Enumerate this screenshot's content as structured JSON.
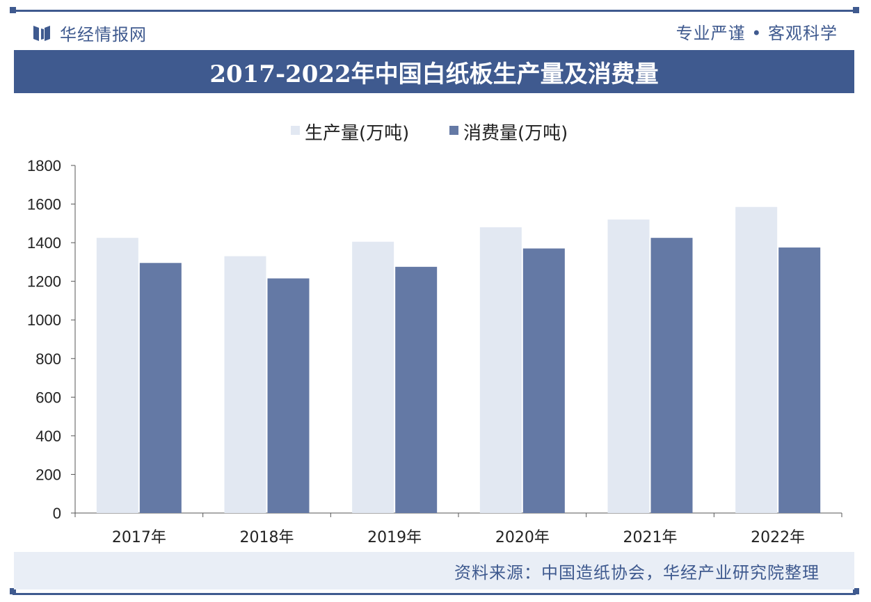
{
  "header": {
    "logo_text": "华经情报网",
    "slogan": "专业严谨 • 客观科学",
    "title": "2017-2022年中国白纸板生产量及消费量"
  },
  "colors": {
    "brand": "#3f5a8f",
    "production": "#e2e8f2",
    "consumption": "#6479a5"
  },
  "chart_data": {
    "type": "bar",
    "title": "2017-2022年中国白纸板生产量及消费量",
    "categories": [
      "2017年",
      "2018年",
      "2019年",
      "2020年",
      "2021年",
      "2022年"
    ],
    "series": [
      {
        "name": "生产量(万吨)",
        "values": [
          1425,
          1330,
          1405,
          1480,
          1520,
          1585
        ]
      },
      {
        "name": "消费量(万吨)",
        "values": [
          1295,
          1215,
          1275,
          1370,
          1425,
          1375
        ]
      }
    ],
    "ylim": [
      0,
      1800
    ],
    "yticks": [
      0,
      200,
      400,
      600,
      800,
      1000,
      1200,
      1400,
      1600,
      1800
    ],
    "legend_position": "top-center",
    "grid": false
  },
  "footer": {
    "source": "资料来源：中国造纸协会，华经产业研究院整理"
  }
}
